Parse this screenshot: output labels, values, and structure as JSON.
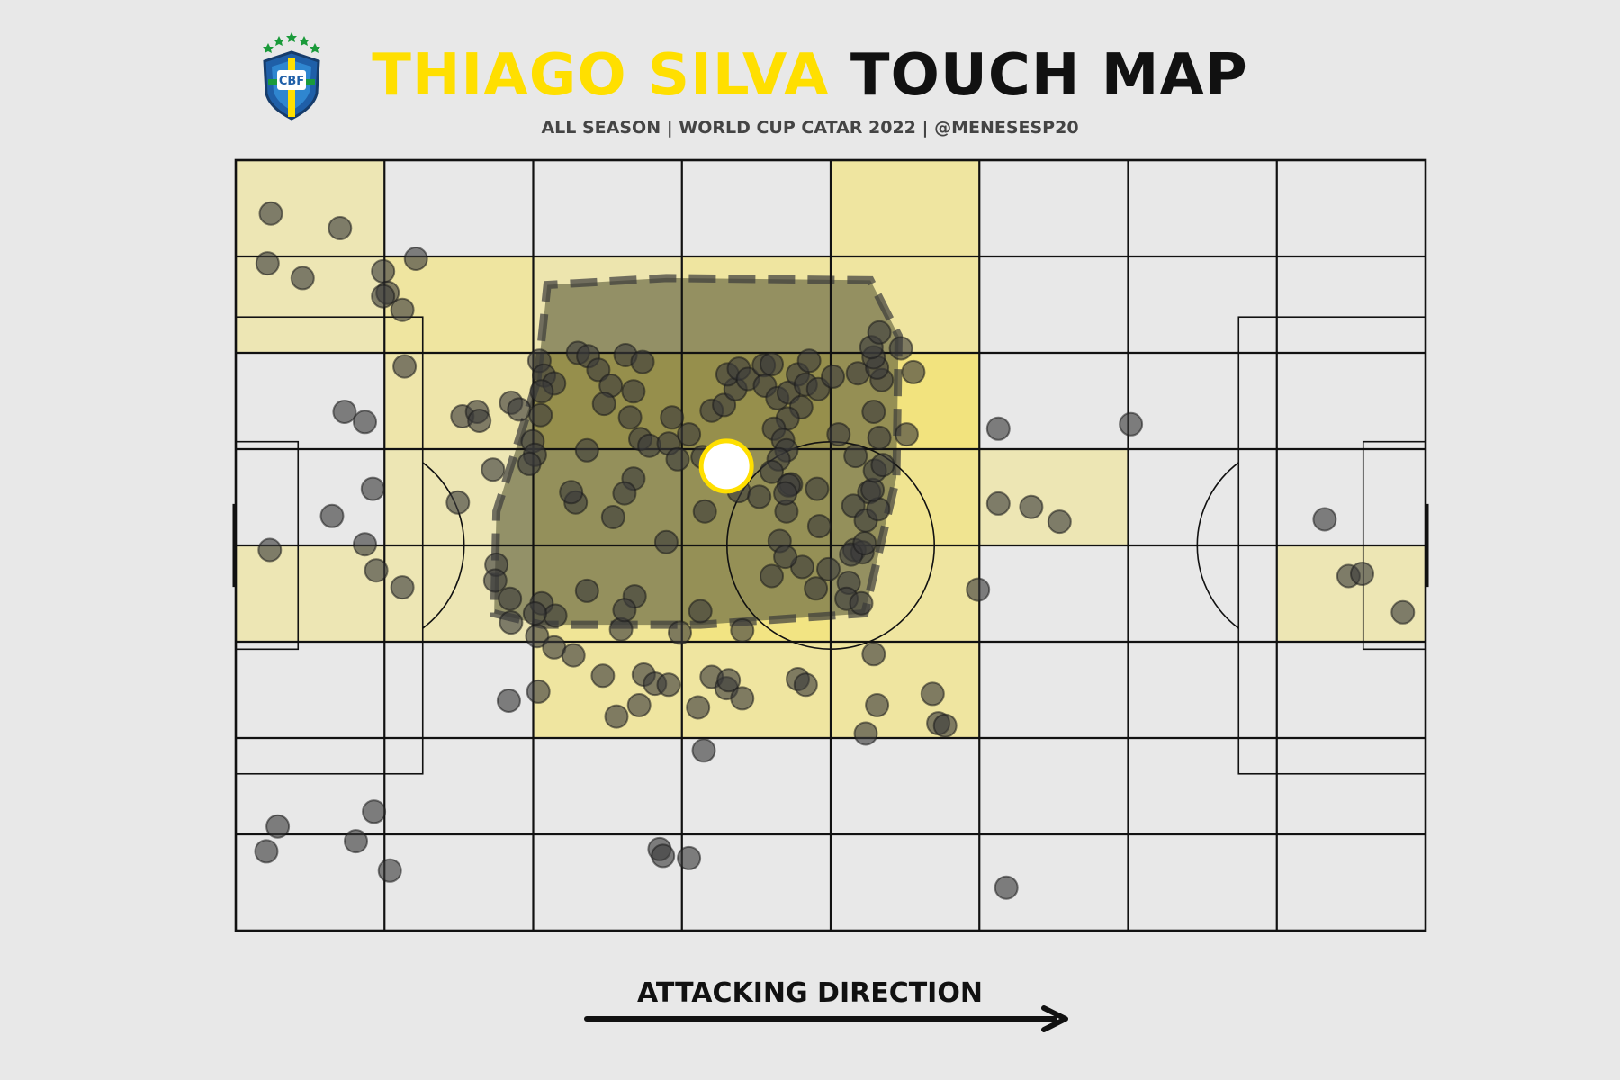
{
  "header": {
    "title_highlight": "THIAGO SILVA",
    "title_rest": "TOUCH MAP",
    "subtitle": "ALL SEASON | WORLD CUP CATAR 2022 | @MENESESP20"
  },
  "logo": {
    "text": "CBF",
    "icon": "cbf-crest-icon"
  },
  "footer": {
    "direction_label": "ATTACKING DIRECTION",
    "arrow_icon": "arrow-right-icon"
  },
  "colors": {
    "background": "#e8e8e8",
    "highlight": "#ffdf00",
    "text": "#111111",
    "touch": "#3a3a3a",
    "hull": "#5c5c3a"
  },
  "chart_data": {
    "type": "scatter",
    "pitch": {
      "length": 105,
      "width": 68,
      "grid_cols": 8,
      "grid_rows": 8
    },
    "xlim": [
      0,
      105
    ],
    "ylim": [
      0,
      68
    ],
    "average_position": {
      "x": 43.3,
      "y": 41.0
    },
    "heat_cells": [
      {
        "col": 0,
        "row": 0,
        "level": 0.25
      },
      {
        "col": 0,
        "row": 1,
        "level": 0.25
      },
      {
        "col": 1,
        "row": 1,
        "level": 0.45
      },
      {
        "col": 2,
        "row": 1,
        "level": 0.3
      },
      {
        "col": 3,
        "row": 1,
        "level": 0.45
      },
      {
        "col": 4,
        "row": 0,
        "level": 0.45
      },
      {
        "col": 4,
        "row": 1,
        "level": 0.45
      },
      {
        "col": 1,
        "row": 2,
        "level": 0.35
      },
      {
        "col": 2,
        "row": 2,
        "level": 1.0
      },
      {
        "col": 3,
        "row": 2,
        "level": 1.0
      },
      {
        "col": 4,
        "row": 2,
        "level": 0.8
      },
      {
        "col": 1,
        "row": 3,
        "level": 0.25
      },
      {
        "col": 2,
        "row": 3,
        "level": 0.6
      },
      {
        "col": 3,
        "row": 3,
        "level": 0.75
      },
      {
        "col": 4,
        "row": 3,
        "level": 0.6
      },
      {
        "col": 5,
        "row": 3,
        "level": 0.25
      },
      {
        "col": 0,
        "row": 4,
        "level": 0.25
      },
      {
        "col": 1,
        "row": 4,
        "level": 0.25
      },
      {
        "col": 2,
        "row": 4,
        "level": 0.55
      },
      {
        "col": 3,
        "row": 4,
        "level": 0.75
      },
      {
        "col": 4,
        "row": 4,
        "level": 0.45
      },
      {
        "col": 7,
        "row": 4,
        "level": 0.25
      },
      {
        "col": 2,
        "row": 5,
        "level": 0.45
      },
      {
        "col": 3,
        "row": 5,
        "level": 0.45
      },
      {
        "col": 4,
        "row": 5,
        "level": 0.45
      }
    ],
    "hull": [
      [
        26.6,
        48.5
      ],
      [
        23.0,
        37.0
      ],
      [
        22.8,
        28.0
      ],
      [
        27.0,
        27.0
      ],
      [
        41.0,
        27.0
      ],
      [
        55.5,
        28.0
      ],
      [
        58.3,
        40.0
      ],
      [
        58.5,
        52.5
      ],
      [
        56.0,
        57.4
      ],
      [
        38.0,
        57.6
      ],
      [
        27.5,
        57.0
      ]
    ],
    "touches": [
      [
        3.1,
        63.3
      ],
      [
        9.2,
        62.0
      ],
      [
        2.8,
        58.9
      ],
      [
        5.9,
        57.6
      ],
      [
        13.0,
        58.2
      ],
      [
        15.9,
        59.3
      ],
      [
        13.4,
        56.3
      ],
      [
        13.0,
        56.0
      ],
      [
        14.7,
        54.8
      ],
      [
        14.9,
        49.8
      ],
      [
        9.6,
        45.8
      ],
      [
        11.4,
        44.9
      ],
      [
        20.0,
        45.4
      ],
      [
        21.3,
        45.8
      ],
      [
        21.5,
        45.0
      ],
      [
        22.7,
        40.7
      ],
      [
        24.3,
        46.6
      ],
      [
        25.0,
        46.0
      ],
      [
        12.1,
        39.0
      ],
      [
        19.6,
        37.8
      ],
      [
        8.5,
        36.6
      ],
      [
        11.4,
        34.1
      ],
      [
        3.0,
        33.6
      ],
      [
        12.4,
        31.8
      ],
      [
        14.7,
        30.3
      ],
      [
        23.0,
        32.3
      ],
      [
        22.9,
        30.9
      ],
      [
        24.2,
        29.3
      ],
      [
        27.0,
        28.9
      ],
      [
        28.2,
        27.8
      ],
      [
        24.3,
        27.2
      ],
      [
        34.0,
        26.6
      ],
      [
        41.0,
        28.2
      ],
      [
        38.0,
        34.3
      ],
      [
        35.2,
        29.5
      ],
      [
        31.0,
        30.0
      ],
      [
        26.4,
        28.0
      ],
      [
        33.3,
        36.5
      ],
      [
        35.1,
        39.9
      ],
      [
        34.3,
        38.6
      ],
      [
        31.0,
        42.4
      ],
      [
        30.0,
        37.8
      ],
      [
        29.6,
        38.7
      ],
      [
        26.8,
        50.3
      ],
      [
        27.2,
        49.0
      ],
      [
        28.1,
        48.3
      ],
      [
        27.0,
        47.6
      ],
      [
        26.9,
        45.5
      ],
      [
        26.2,
        43.2
      ],
      [
        26.4,
        42.0
      ],
      [
        25.9,
        41.2
      ],
      [
        30.2,
        51.0
      ],
      [
        31.1,
        50.7
      ],
      [
        32.0,
        49.5
      ],
      [
        34.4,
        50.8
      ],
      [
        35.9,
        50.2
      ],
      [
        35.1,
        47.6
      ],
      [
        33.1,
        48.1
      ],
      [
        32.5,
        46.5
      ],
      [
        34.8,
        45.3
      ],
      [
        35.7,
        43.4
      ],
      [
        36.5,
        42.8
      ],
      [
        38.5,
        45.3
      ],
      [
        38.2,
        43.0
      ],
      [
        39.0,
        41.6
      ],
      [
        40.0,
        43.8
      ],
      [
        41.2,
        41.8
      ],
      [
        42.0,
        45.9
      ],
      [
        43.1,
        46.4
      ],
      [
        44.1,
        47.8
      ],
      [
        43.4,
        49.1
      ],
      [
        44.4,
        49.6
      ],
      [
        45.2,
        48.7
      ],
      [
        46.6,
        49.9
      ],
      [
        47.3,
        50.0
      ],
      [
        46.7,
        48.1
      ],
      [
        47.8,
        47.0
      ],
      [
        48.8,
        47.5
      ],
      [
        49.6,
        49.1
      ],
      [
        50.3,
        48.2
      ],
      [
        51.4,
        47.8
      ],
      [
        52.7,
        48.9
      ],
      [
        50.6,
        50.3
      ],
      [
        49.9,
        46.2
      ],
      [
        48.7,
        45.2
      ],
      [
        47.5,
        44.3
      ],
      [
        48.3,
        43.3
      ],
      [
        48.6,
        42.4
      ],
      [
        47.9,
        41.6
      ],
      [
        47.3,
        40.5
      ],
      [
        49.0,
        39.4
      ],
      [
        51.3,
        39.0
      ],
      [
        53.2,
        43.8
      ],
      [
        54.7,
        41.9
      ],
      [
        55.9,
        38.7
      ],
      [
        54.5,
        37.5
      ],
      [
        55.6,
        36.2
      ],
      [
        56.7,
        37.2
      ],
      [
        56.2,
        38.9
      ],
      [
        56.4,
        40.6
      ],
      [
        56.8,
        43.5
      ],
      [
        56.3,
        45.8
      ],
      [
        54.9,
        49.2
      ],
      [
        57.0,
        48.6
      ],
      [
        56.6,
        49.7
      ],
      [
        56.3,
        50.6
      ],
      [
        56.1,
        51.5
      ],
      [
        56.8,
        52.8
      ],
      [
        58.7,
        51.4
      ],
      [
        59.8,
        49.3
      ],
      [
        59.2,
        43.8
      ],
      [
        57.1,
        41.1
      ],
      [
        41.4,
        37.0
      ],
      [
        44.4,
        38.8
      ],
      [
        46.2,
        38.3
      ],
      [
        48.0,
        34.4
      ],
      [
        47.3,
        31.3
      ],
      [
        50.0,
        32.1
      ],
      [
        51.5,
        35.7
      ],
      [
        48.6,
        37.0
      ],
      [
        48.8,
        39.3
      ],
      [
        48.5,
        38.6
      ],
      [
        54.6,
        33.6
      ],
      [
        55.3,
        33.4
      ],
      [
        54.3,
        33.2
      ],
      [
        55.5,
        34.2
      ],
      [
        54.1,
        30.7
      ],
      [
        53.9,
        29.3
      ],
      [
        55.2,
        28.9
      ],
      [
        52.3,
        31.9
      ],
      [
        51.2,
        30.2
      ],
      [
        48.5,
        33.0
      ],
      [
        44.7,
        26.5
      ],
      [
        39.2,
        26.3
      ],
      [
        34.3,
        28.3
      ],
      [
        26.6,
        26.0
      ],
      [
        28.1,
        25.0
      ],
      [
        29.8,
        24.3
      ],
      [
        32.4,
        22.5
      ],
      [
        36.0,
        22.6
      ],
      [
        37.0,
        21.8
      ],
      [
        38.2,
        21.7
      ],
      [
        42.0,
        22.4
      ],
      [
        43.3,
        21.4
      ],
      [
        43.5,
        22.1
      ],
      [
        49.6,
        22.2
      ],
      [
        50.3,
        21.7
      ],
      [
        56.3,
        24.4
      ],
      [
        26.7,
        21.1
      ],
      [
        24.1,
        20.3
      ],
      [
        33.6,
        18.9
      ],
      [
        35.6,
        19.9
      ],
      [
        40.8,
        19.7
      ],
      [
        44.7,
        20.5
      ],
      [
        56.6,
        19.9
      ],
      [
        62.0,
        18.3
      ],
      [
        61.5,
        20.9
      ],
      [
        55.6,
        17.4
      ],
      [
        62.6,
        18.1
      ],
      [
        65.5,
        30.1
      ],
      [
        72.7,
        36.1
      ],
      [
        67.3,
        37.7
      ],
      [
        70.2,
        37.4
      ],
      [
        79.0,
        44.7
      ],
      [
        67.3,
        44.3
      ],
      [
        96.1,
        36.3
      ],
      [
        98.2,
        31.3
      ],
      [
        99.4,
        31.5
      ],
      [
        103.0,
        28.1
      ],
      [
        41.3,
        15.9
      ],
      [
        37.4,
        7.2
      ],
      [
        37.7,
        6.6
      ],
      [
        40.0,
        6.4
      ],
      [
        2.7,
        7.0
      ],
      [
        3.7,
        9.2
      ],
      [
        10.6,
        7.9
      ],
      [
        12.2,
        10.5
      ],
      [
        13.6,
        5.3
      ],
      [
        68.0,
        3.8
      ]
    ]
  }
}
